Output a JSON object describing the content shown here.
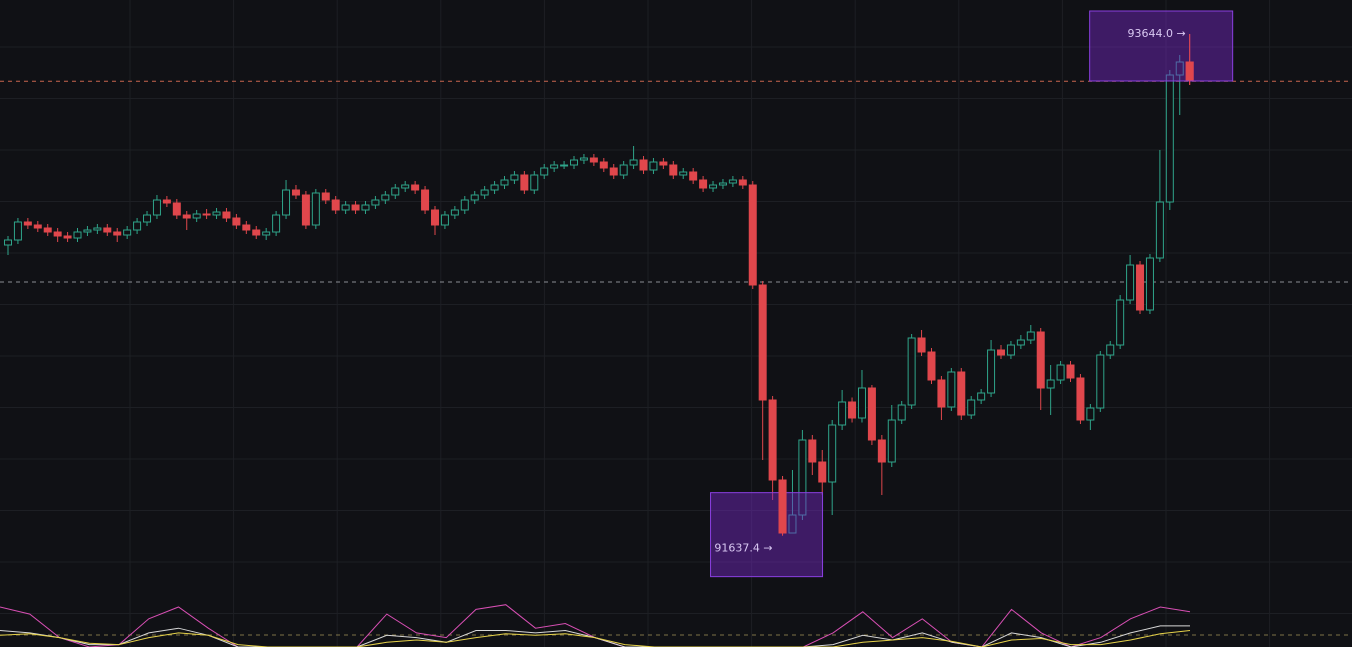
{
  "chart_data": {
    "type": "candlestick",
    "ylim": [
      91380,
      93780
    ],
    "up_color": "#2fa58a",
    "down_color": "#e0474c",
    "open": [
      92800,
      92820,
      92892,
      92880,
      92868,
      92852,
      92836,
      92828,
      92852,
      92860,
      92868,
      92852,
      92840,
      92860,
      92892,
      92920,
      92980,
      92968,
      92920,
      92908,
      92924,
      92920,
      92932,
      92908,
      92880,
      92860,
      92840,
      92852,
      92920,
      93020,
      93000,
      92880,
      93008,
      92980,
      92940,
      92960,
      92940,
      92960,
      92980,
      93000,
      93028,
      93040,
      93020,
      92940,
      92880,
      92920,
      92940,
      92980,
      93000,
      93020,
      93040,
      93060,
      93080,
      93020,
      93080,
      93108,
      93120,
      93120,
      93140,
      93148,
      93132,
      93108,
      93080,
      93120,
      93140,
      93100,
      93132,
      93120,
      93080,
      93092,
      93060,
      93028,
      93040,
      93048,
      93060,
      93040,
      92640,
      92180,
      91860,
      91648,
      91720,
      92020,
      91932,
      91852,
      92080,
      92172,
      92108,
      92228,
      92020,
      91932,
      92100,
      92160,
      92428,
      92372,
      92260,
      92152,
      92292,
      92120,
      92180,
      92208,
      92380,
      92360,
      92400,
      92420,
      92452,
      92228,
      92260,
      92320,
      92268,
      92100,
      92148,
      92360,
      92400,
      92580,
      92720,
      92540,
      92748,
      92972,
      93480,
      93532
    ],
    "high": [
      92836,
      92908,
      92908,
      92896,
      92884,
      92868,
      92852,
      92868,
      92876,
      92884,
      92884,
      92868,
      92876,
      92908,
      92936,
      93000,
      92996,
      92984,
      92936,
      92940,
      92944,
      92948,
      92948,
      92924,
      92896,
      92876,
      92868,
      92936,
      93060,
      93040,
      93016,
      93024,
      93024,
      92996,
      92976,
      92976,
      92976,
      92996,
      93016,
      93044,
      93056,
      93056,
      93036,
      92956,
      92936,
      92956,
      92996,
      93016,
      93036,
      93056,
      93076,
      93096,
      93096,
      93096,
      93124,
      93136,
      93136,
      93156,
      93164,
      93164,
      93148,
      93124,
      93136,
      93196,
      93156,
      93148,
      93148,
      93136,
      93108,
      93108,
      93076,
      93056,
      93064,
      93076,
      93076,
      93056,
      92656,
      92196,
      91876,
      91900,
      92060,
      92040,
      91980,
      92100,
      92220,
      92190,
      92300,
      92240,
      92040,
      92160,
      92176,
      92444,
      92460,
      92388,
      92276,
      92308,
      92308,
      92196,
      92224,
      92420,
      92400,
      92416,
      92440,
      92480,
      92468,
      92320,
      92336,
      92336,
      92284,
      92164,
      92376,
      92416,
      92600,
      92760,
      92736,
      92764,
      93180,
      93500,
      93560,
      93644.0
    ],
    "low": [
      92760,
      92804,
      92864,
      92852,
      92836,
      92812,
      92812,
      92812,
      92836,
      92844,
      92836,
      92812,
      92824,
      92844,
      92876,
      92904,
      92952,
      92904,
      92860,
      92892,
      92904,
      92904,
      92892,
      92864,
      92844,
      92824,
      92820,
      92836,
      92904,
      92984,
      92864,
      92864,
      92964,
      92924,
      92924,
      92924,
      92924,
      92944,
      92964,
      92984,
      93012,
      93004,
      92924,
      92840,
      92864,
      92904,
      92924,
      92964,
      92984,
      93004,
      93024,
      93044,
      93004,
      93004,
      93064,
      93092,
      93104,
      93104,
      93124,
      93116,
      93092,
      93064,
      93064,
      93104,
      93084,
      93084,
      93104,
      93064,
      93064,
      93044,
      93012,
      93012,
      93024,
      93032,
      93024,
      92624,
      91940,
      91780,
      91637.4,
      91660,
      91700,
      91880,
      91800,
      91720,
      92060,
      92090,
      92090,
      92000,
      91800,
      91912,
      92084,
      92144,
      92356,
      92244,
      92100,
      92136,
      92100,
      92104,
      92164,
      92192,
      92344,
      92344,
      92384,
      92404,
      92140,
      92120,
      92244,
      92252,
      92084,
      92060,
      92132,
      92344,
      92384,
      92564,
      92524,
      92524,
      92732,
      92940,
      93320,
      93440
    ],
    "close": [
      92820,
      92892,
      92880,
      92868,
      92852,
      92836,
      92828,
      92852,
      92860,
      92868,
      92852,
      92840,
      92860,
      92892,
      92920,
      92980,
      92968,
      92920,
      92908,
      92924,
      92920,
      92932,
      92908,
      92880,
      92860,
      92840,
      92852,
      92920,
      93020,
      93000,
      92880,
      93008,
      92980,
      92940,
      92960,
      92940,
      92960,
      92980,
      93000,
      93028,
      93040,
      93020,
      92940,
      92880,
      92920,
      92940,
      92980,
      93000,
      93020,
      93040,
      93060,
      93080,
      93020,
      93080,
      93108,
      93120,
      93120,
      93140,
      93148,
      93132,
      93108,
      93080,
      93120,
      93140,
      93100,
      93132,
      93120,
      93080,
      93092,
      93060,
      93028,
      93040,
      93048,
      93060,
      93040,
      92640,
      92180,
      91860,
      91648,
      91720,
      92020,
      91932,
      91852,
      92080,
      92172,
      92108,
      92228,
      92020,
      91932,
      92100,
      92160,
      92428,
      92372,
      92260,
      92152,
      92292,
      92120,
      92180,
      92208,
      92380,
      92360,
      92400,
      92420,
      92452,
      92228,
      92260,
      92320,
      92268,
      92100,
      92148,
      92360,
      92400,
      92580,
      92720,
      92540,
      92748,
      92972,
      93480,
      93532,
      93460
    ],
    "price_lines": [
      {
        "value": 93455,
        "color": "#c8664f"
      },
      {
        "value": 92652,
        "color": "#8a8d93"
      }
    ],
    "annotations": [
      {
        "label": "93644.0 →"
      },
      {
        "label": "91637.4 →"
      }
    ],
    "indicator": {
      "ylim": [
        0,
        100
      ],
      "series": [
        {
          "color": "#d84fb4",
          "values": [
            85,
            70,
            20,
            0,
            5,
            60,
            85,
            40,
            0,
            0,
            0,
            0,
            0,
            70,
            30,
            20,
            80,
            90,
            40,
            50,
            20,
            0,
            0,
            0,
            0,
            0,
            0,
            0,
            30,
            75,
            20,
            60,
            10,
            0,
            80,
            30,
            0,
            20,
            60,
            85,
            75
          ]
        },
        {
          "color": "#d8d8d8",
          "values": [
            35,
            30,
            20,
            5,
            5,
            30,
            40,
            25,
            0,
            0,
            0,
            0,
            0,
            25,
            20,
            10,
            35,
            35,
            30,
            35,
            20,
            0,
            0,
            0,
            0,
            0,
            0,
            0,
            5,
            25,
            15,
            30,
            10,
            0,
            30,
            20,
            0,
            10,
            30,
            45,
            45
          ]
        },
        {
          "color": "#e6d24a",
          "values": [
            25,
            28,
            20,
            8,
            5,
            20,
            30,
            25,
            5,
            0,
            0,
            0,
            0,
            10,
            15,
            10,
            20,
            28,
            25,
            28,
            20,
            5,
            0,
            0,
            0,
            0,
            0,
            0,
            0,
            10,
            15,
            20,
            12,
            0,
            15,
            18,
            5,
            5,
            15,
            28,
            35
          ]
        }
      ]
    }
  }
}
